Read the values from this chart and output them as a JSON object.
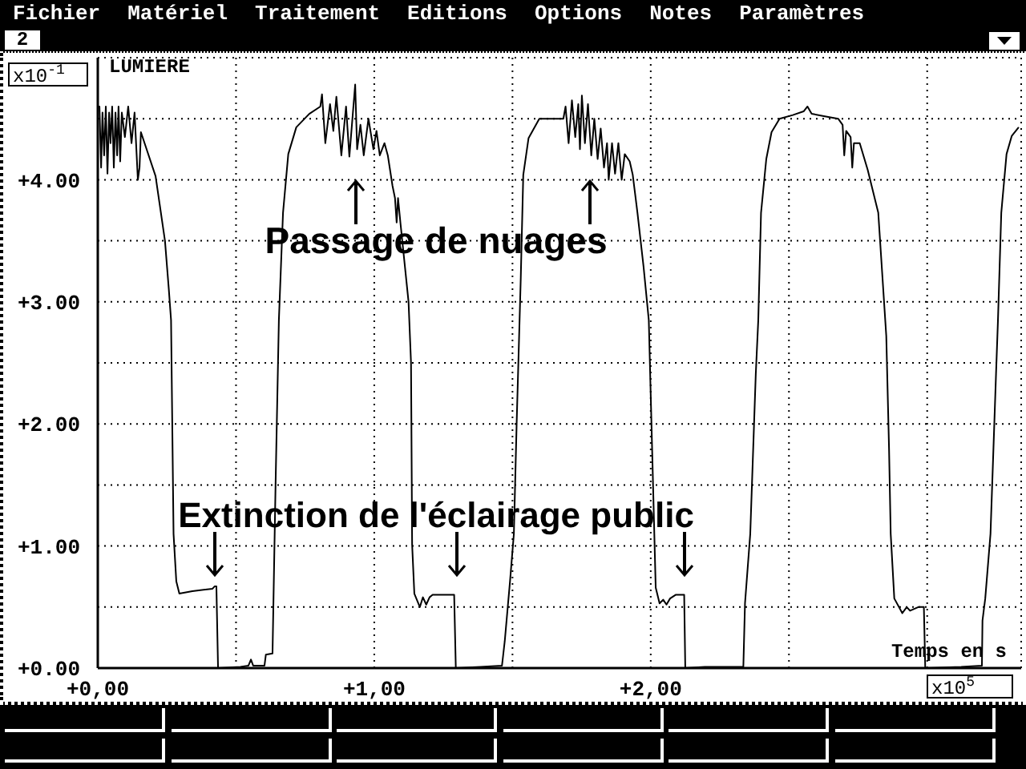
{
  "chart_data": {
    "type": "line",
    "xlabel": "Temps en s",
    "ylabel": "LUMIERE",
    "annotations": [
      "Passage de nuages",
      "Extinction de l'éclairage public",
      "x10$^{-1}$",
      "x10$^{5}$",
      "Fichier",
      "Matériel",
      "Traitement",
      "Editions",
      "Options",
      "Notes",
      "Paramètres",
      "2"
    ],
    "x": [
      0.0,
      0.006,
      0.012,
      0.017,
      0.023,
      0.029,
      0.035,
      0.041,
      0.046,
      0.052,
      0.058,
      0.064,
      0.07,
      0.075,
      0.081,
      0.087,
      0.098,
      0.11,
      0.122,
      0.133,
      0.145,
      0.151,
      0.156,
      0.209,
      0.243,
      0.257,
      0.265,
      0.274,
      0.284,
      0.295,
      0.342,
      0.415,
      0.423,
      0.429,
      0.435,
      0.516,
      0.545,
      0.554,
      0.562,
      0.603,
      0.608,
      0.632,
      0.643,
      0.655,
      0.67,
      0.689,
      0.718,
      0.765,
      0.805,
      0.811,
      0.823,
      0.84,
      0.852,
      0.863,
      0.881,
      0.898,
      0.91,
      0.931,
      0.938,
      0.95,
      0.962,
      0.979,
      0.997,
      1.008,
      1.02,
      1.037,
      1.049,
      1.066,
      1.075,
      1.081,
      1.086,
      1.095,
      1.124,
      1.133,
      1.137,
      1.145,
      1.165,
      1.176,
      1.188,
      1.2,
      1.211,
      1.289,
      1.295,
      1.385,
      1.462,
      1.466,
      1.472,
      1.491,
      1.505,
      1.515,
      1.53,
      1.539,
      1.558,
      1.597,
      1.684,
      1.692,
      1.703,
      1.715,
      1.727,
      1.738,
      1.744,
      1.751,
      1.762,
      1.773,
      1.785,
      1.796,
      1.808,
      1.819,
      1.831,
      1.842,
      1.848,
      1.86,
      1.871,
      1.883,
      1.895,
      1.906,
      1.924,
      1.935,
      1.952,
      1.974,
      1.993,
      2.005,
      2.018,
      2.032,
      2.045,
      2.057,
      2.07,
      2.09,
      2.121,
      2.125,
      2.196,
      2.335,
      2.341,
      2.36,
      2.38,
      2.389,
      2.399,
      2.418,
      2.437,
      2.466,
      2.514,
      2.553,
      2.567,
      2.582,
      2.63,
      2.678,
      2.694,
      2.7,
      2.707,
      2.723,
      2.729,
      2.735,
      2.756,
      2.785,
      2.823,
      2.852,
      2.862,
      2.868,
      2.881,
      2.91,
      2.926,
      2.938,
      2.968,
      2.988,
      2.993,
      3.123,
      3.198,
      3.2,
      3.21,
      3.229,
      3.249,
      3.256,
      3.268,
      3.287,
      3.306,
      3.331
    ],
    "values": [
      4.6,
      4.6,
      4.1,
      4.55,
      4.2,
      4.6,
      4.05,
      4.55,
      4.3,
      4.6,
      4.1,
      4.55,
      4.2,
      4.6,
      4.15,
      4.55,
      4.35,
      4.6,
      4.3,
      4.55,
      4.0,
      4.1,
      4.39,
      4.03,
      3.5,
      3.1,
      2.85,
      1.1,
      0.71,
      0.61,
      0.63,
      0.65,
      0.67,
      0.67,
      0.0,
      0.01,
      0.02,
      0.07,
      0.02,
      0.02,
      0.11,
      0.12,
      1.5,
      2.85,
      3.73,
      4.21,
      4.43,
      4.54,
      4.6,
      4.7,
      4.3,
      4.62,
      4.4,
      4.68,
      4.2,
      4.6,
      4.19,
      4.78,
      4.25,
      4.45,
      4.2,
      4.5,
      4.25,
      4.4,
      4.2,
      4.3,
      4.2,
      3.95,
      3.85,
      3.65,
      3.85,
      3.64,
      3.0,
      2.5,
      1.01,
      0.61,
      0.5,
      0.58,
      0.52,
      0.58,
      0.6,
      0.6,
      0.0,
      0.01,
      0.02,
      0.1,
      0.22,
      0.71,
      1.1,
      2.0,
      3.2,
      4.04,
      4.34,
      4.5,
      4.5,
      4.6,
      4.3,
      4.65,
      4.35,
      4.62,
      4.25,
      4.69,
      4.3,
      4.62,
      4.2,
      4.5,
      4.17,
      4.42,
      4.1,
      4.3,
      4.0,
      4.3,
      4.05,
      4.3,
      4.0,
      4.21,
      4.15,
      4.04,
      3.73,
      3.29,
      2.85,
      1.8,
      0.66,
      0.53,
      0.56,
      0.52,
      0.57,
      0.6,
      0.6,
      0.0,
      0.01,
      0.01,
      0.53,
      1.1,
      2.41,
      2.85,
      3.73,
      4.17,
      4.39,
      4.5,
      4.53,
      4.56,
      4.6,
      4.54,
      4.52,
      4.5,
      4.45,
      4.2,
      4.4,
      4.35,
      4.1,
      4.3,
      4.3,
      4.08,
      3.73,
      2.72,
      1.8,
      1.1,
      0.57,
      0.45,
      0.5,
      0.47,
      0.5,
      0.5,
      0.0,
      0.01,
      0.02,
      0.39,
      0.57,
      1.1,
      2.41,
      2.85,
      3.73,
      4.21,
      4.36,
      4.43
    ],
    "color": "#000000",
    "xlim": [
      0,
      3.34
    ],
    "ylim": [
      0,
      5
    ],
    "xticks": [
      {
        "value": 0,
        "label": "+0,00"
      },
      {
        "value": 0.5,
        "label": null
      },
      {
        "value": 1,
        "label": "+1,00"
      },
      {
        "value": 1.5,
        "label": null
      },
      {
        "value": 2,
        "label": "+2,00"
      },
      {
        "value": 2.5,
        "label": null
      },
      {
        "value": 3,
        "label": null
      }
    ],
    "yticks": [
      {
        "value": 0,
        "label": "+0.00"
      },
      {
        "value": 0.5,
        "label": null
      },
      {
        "value": 1,
        "label": "+1.00"
      },
      {
        "value": 1.5,
        "label": null
      },
      {
        "value": 2,
        "label": "+2.00"
      },
      {
        "value": 2.5,
        "label": null
      },
      {
        "value": 3,
        "label": "+3.00"
      },
      {
        "value": 3.5,
        "label": null
      },
      {
        "value": 4,
        "label": "+4.00"
      },
      {
        "value": 4.5,
        "label": null
      },
      {
        "value": 5,
        "label": null
      }
    ],
    "grid": true,
    "legend": false,
    "marker": "none",
    "line_style": "solid"
  }
}
